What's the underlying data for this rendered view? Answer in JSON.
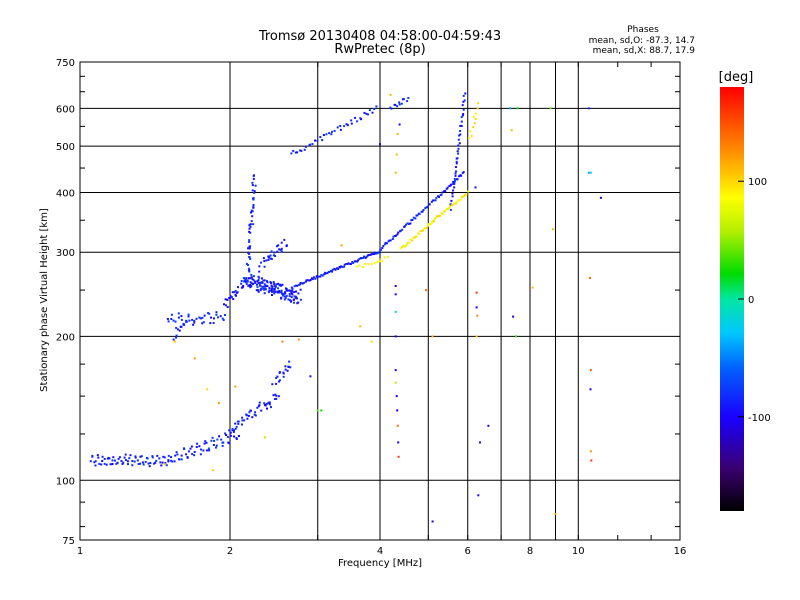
{
  "chart_data": {
    "type": "scatter",
    "title": "Tromsø 20130408 04:58:00-04:59:43",
    "subtitle": "RwPretec (8p)",
    "xlabel": "Frequency [MHz]",
    "ylabel": "Stationary phase Virtual Height [km]",
    "x_scale": "log",
    "y_scale": "log",
    "xlim": [
      1,
      16
    ],
    "ylim": [
      75,
      750
    ],
    "x_ticks": [
      1,
      2,
      4,
      6,
      8,
      10,
      16
    ],
    "x_tick_labels": [
      "1",
      "2",
      "4",
      "6",
      "8",
      "10",
      "16"
    ],
    "x_minor_gridlines": [
      3,
      5,
      7,
      9
    ],
    "y_ticks": [
      75,
      100,
      200,
      300,
      400,
      500,
      600,
      750
    ],
    "y_tick_labels": [
      "75",
      "100",
      "200",
      "300",
      "400",
      "500",
      "600",
      "750"
    ],
    "y_minor_gridlines": [],
    "grid": true,
    "annotation": {
      "heading": "Phases",
      "line1": "mean, sd,O: -87.3, 14.7",
      "line2": "mean, sd,X: 88.7, 17.9"
    },
    "colorbar": {
      "label": "[deg]",
      "range": [
        -180,
        180
      ],
      "ticks": [
        100,
        0,
        -100
      ],
      "tick_labels": [
        "100",
        "0",
        "-100"
      ]
    },
    "series": [
      {
        "phase_group": "O",
        "phase_mean": -87.3,
        "segments": [
          {
            "f0": 1.05,
            "f1": 1.5,
            "h0": 110,
            "h1": 110,
            "n": 70,
            "jit": 0.018,
            "amp": 0.02,
            "wav": 14
          },
          {
            "f0": 1.5,
            "f1": 2.08,
            "h0": 110,
            "h1": 125,
            "n": 60,
            "jit": 0.02,
            "amp": 0.025,
            "wav": 10
          },
          {
            "f0": 2.0,
            "f1": 2.5,
            "h0": 128,
            "h1": 150,
            "n": 45,
            "jit": 0.05,
            "amp": 0,
            "wav": 0
          },
          {
            "f0": 2.45,
            "f1": 2.65,
            "h0": 160,
            "h1": 175,
            "n": 18,
            "jit": 0.04,
            "amp": 0,
            "wav": 0
          },
          {
            "f0": 1.5,
            "f1": 1.95,
            "h0": 215,
            "h1": 220,
            "n": 40,
            "jit": 0.03,
            "amp": 0.02,
            "wav": 6
          },
          {
            "f0": 1.55,
            "f1": 1.65,
            "h0": 200,
            "h1": 218,
            "n": 12,
            "jit": 0.03,
            "amp": 0,
            "wav": 0
          },
          {
            "f0": 1.95,
            "f1": 2.15,
            "h0": 232,
            "h1": 262,
            "n": 25,
            "jit": 0.04,
            "amp": 0,
            "wav": 0
          },
          {
            "f0": 2.15,
            "f1": 2.75,
            "h0": 262,
            "h1": 242,
            "n": 160,
            "jit": 0.07,
            "amp": 0,
            "wav": 0
          },
          {
            "f0": 2.17,
            "f1": 2.24,
            "h0": 270,
            "h1": 430,
            "n": 45,
            "jit": 0.04,
            "amp": 0,
            "wav": 0
          },
          {
            "f0": 2.3,
            "f1": 2.6,
            "h0": 280,
            "h1": 315,
            "n": 30,
            "jit": 0.05,
            "amp": 0,
            "wav": 0
          },
          {
            "f0": 2.7,
            "f1": 3.95,
            "h0": 255,
            "h1": 300,
            "n": 70,
            "jit": 0.01,
            "amp": 0,
            "wav": 0
          },
          {
            "f0": 3.95,
            "f1": 5.9,
            "h0": 300,
            "h1": 440,
            "n": 70,
            "jit": 0.012,
            "amp": 0,
            "wav": 0
          },
          {
            "f0": 5.55,
            "f1": 5.92,
            "h0": 370,
            "h1": 640,
            "n": 40,
            "jit": 0.02,
            "amp": 0,
            "wav": 0
          },
          {
            "f0": 2.65,
            "f1": 3.95,
            "h0": 480,
            "h1": 600,
            "n": 40,
            "jit": 0.025,
            "amp": 0,
            "wav": 0
          },
          {
            "f0": 4.2,
            "f1": 4.55,
            "h0": 600,
            "h1": 630,
            "n": 12,
            "jit": 0.02,
            "amp": 0,
            "wav": 0
          }
        ]
      },
      {
        "phase_group": "X",
        "phase_mean": 88.7,
        "segments": [
          {
            "f0": 3.6,
            "f1": 4.15,
            "h0": 278,
            "h1": 292,
            "n": 12,
            "jit": 0.015,
            "amp": 0,
            "wav": 0
          },
          {
            "f0": 4.4,
            "f1": 6.0,
            "h0": 305,
            "h1": 400,
            "n": 55,
            "jit": 0.012,
            "amp": 0,
            "wav": 0
          },
          {
            "f0": 6.05,
            "f1": 6.3,
            "h0": 520,
            "h1": 610,
            "n": 10,
            "jit": 0.03,
            "amp": 0,
            "wav": 0
          }
        ]
      }
    ],
    "scattered_points": {
      "note": "sparse isolated echoes",
      "points": [
        [
          1.48,
          108,
          100
        ],
        [
          1.55,
          195,
          110
        ],
        [
          1.7,
          180,
          120
        ],
        [
          1.8,
          155,
          100
        ],
        [
          1.9,
          145,
          120
        ],
        [
          1.85,
          105,
          100
        ],
        [
          2.05,
          157,
          120
        ],
        [
          2.35,
          123,
          60
        ],
        [
          2.55,
          195,
          130
        ],
        [
          2.75,
          197,
          120
        ],
        [
          2.9,
          165,
          -100
        ],
        [
          3.0,
          140,
          40
        ],
        [
          3.05,
          140,
          20
        ],
        [
          3.35,
          310,
          120
        ],
        [
          3.65,
          210,
          110
        ],
        [
          3.85,
          195,
          100
        ],
        [
          4.0,
          290,
          110
        ],
        [
          4.3,
          170,
          -100
        ],
        [
          4.3,
          160,
          60
        ],
        [
          4.32,
          150,
          -100
        ],
        [
          4.33,
          140,
          -100
        ],
        [
          4.34,
          130,
          140
        ],
        [
          4.35,
          120,
          -100
        ],
        [
          4.36,
          112,
          160
        ],
        [
          4.3,
          255,
          -100
        ],
        [
          4.3,
          245,
          -100
        ],
        [
          4.3,
          225,
          -20
        ],
        [
          4.3,
          200,
          -100
        ],
        [
          4.3,
          440,
          110
        ],
        [
          4.32,
          480,
          110
        ],
        [
          4.34,
          530,
          110
        ],
        [
          4.38,
          555,
          -100
        ],
        [
          4.2,
          640,
          110
        ],
        [
          4.0,
          505,
          -100
        ],
        [
          4.95,
          250,
          140
        ],
        [
          5.1,
          200,
          120
        ],
        [
          5.1,
          82,
          -120
        ],
        [
          6.25,
          200,
          110
        ],
        [
          6.25,
          230,
          -100
        ],
        [
          6.25,
          247,
          160
        ],
        [
          6.27,
          221,
          130
        ],
        [
          6.3,
          93,
          -100
        ],
        [
          6.22,
          410,
          -100
        ],
        [
          6.35,
          120,
          -100
        ],
        [
          6.6,
          130,
          -120
        ],
        [
          7.3,
          600,
          -40
        ],
        [
          7.35,
          540,
          110
        ],
        [
          7.4,
          220,
          -100
        ],
        [
          7.5,
          200,
          30
        ],
        [
          7.55,
          600,
          20
        ],
        [
          8.1,
          253,
          110
        ],
        [
          8.8,
          600,
          40
        ],
        [
          8.9,
          335,
          110
        ],
        [
          9.0,
          85,
          120
        ],
        [
          10.5,
          600,
          -80
        ],
        [
          10.55,
          265,
          140
        ],
        [
          10.6,
          170,
          140
        ],
        [
          10.58,
          155,
          -100
        ],
        [
          10.6,
          115,
          120
        ],
        [
          10.62,
          110,
          160
        ],
        [
          10.6,
          440,
          -20
        ],
        [
          11.1,
          390,
          -120
        ],
        [
          10.5,
          440,
          -40
        ]
      ]
    }
  }
}
